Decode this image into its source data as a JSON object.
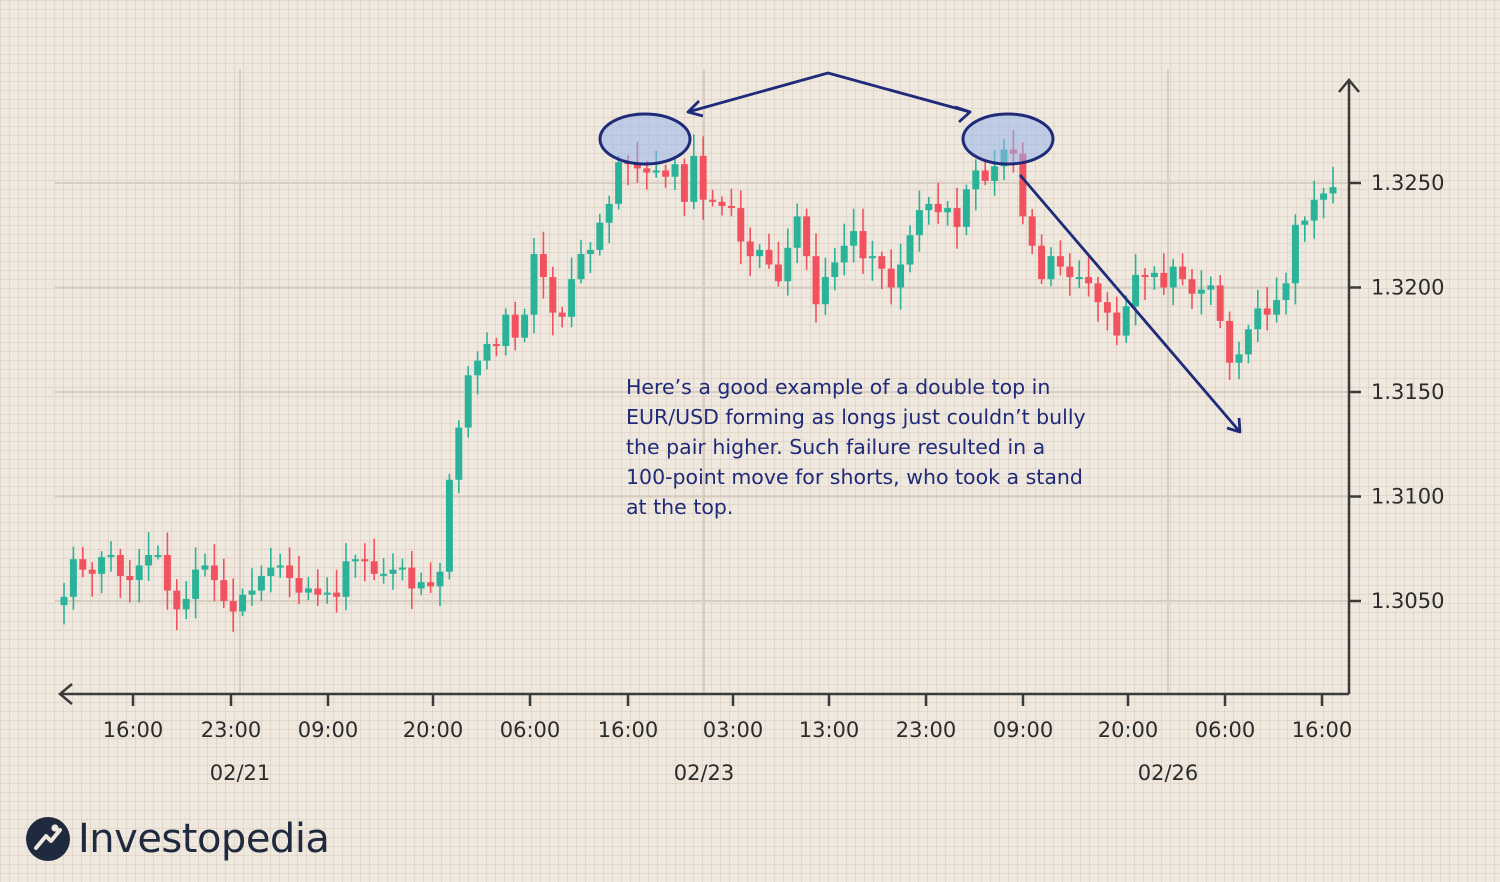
{
  "chart_data": {
    "type": "candlestick",
    "title": "",
    "xlabel": "",
    "ylabel": "",
    "ylim": [
      1.3005,
      1.329
    ],
    "y_ticks": [
      {
        "value": 1.305,
        "label": "1.3050"
      },
      {
        "value": 1.31,
        "label": "1.3100"
      },
      {
        "value": 1.315,
        "label": "1.3150"
      },
      {
        "value": 1.32,
        "label": "1.3200"
      },
      {
        "value": 1.325,
        "label": "1.3250"
      }
    ],
    "x_ticks": [
      "16:00",
      "23:00",
      "09:00",
      "20:00",
      "06:00",
      "16:00",
      "03:00",
      "13:00",
      "23:00",
      "09:00",
      "20:00",
      "06:00",
      "16:00"
    ],
    "date_labels": [
      "02/21",
      "02/23",
      "02/26"
    ],
    "grid": true,
    "up_color": "#2bb39a",
    "down_color": "#f0535f",
    "closes": [
      1.3052,
      1.307,
      1.3065,
      1.3063,
      1.3071,
      1.3072,
      1.3062,
      1.306,
      1.3067,
      1.3072,
      1.3072,
      1.3055,
      1.3046,
      1.3051,
      1.3065,
      1.3067,
      1.306,
      1.305,
      1.3045,
      1.3053,
      1.3055,
      1.3062,
      1.3066,
      1.3067,
      1.3061,
      1.3054,
      1.3056,
      1.3053,
      1.3054,
      1.3052,
      1.3069,
      1.307,
      1.3069,
      1.3063,
      1.3063,
      1.3065,
      1.3066,
      1.3056,
      1.3059,
      1.3057,
      1.3064,
      1.3108,
      1.3133,
      1.3158,
      1.3165,
      1.3173,
      1.3172,
      1.3187,
      1.3176,
      1.3187,
      1.3216,
      1.3205,
      1.3188,
      1.3186,
      1.3204,
      1.3216,
      1.3218,
      1.3231,
      1.324,
      1.326,
      1.3259,
      1.3257,
      1.3255,
      1.3256,
      1.3253,
      1.3259,
      1.3241,
      1.3263,
      1.3242,
      1.3241,
      1.3239,
      1.3238,
      1.3222,
      1.3215,
      1.3218,
      1.3211,
      1.3203,
      1.3219,
      1.3234,
      1.3215,
      1.3192,
      1.3205,
      1.3212,
      1.322,
      1.3227,
      1.3214,
      1.3215,
      1.3209,
      1.32,
      1.3211,
      1.3225,
      1.3237,
      1.324,
      1.3236,
      1.3238,
      1.3229,
      1.3247,
      1.3256,
      1.3251,
      1.3258,
      1.3266,
      1.3264,
      1.3234,
      1.322,
      1.3204,
      1.3215,
      1.321,
      1.3205,
      1.3205,
      1.3202,
      1.3193,
      1.3188,
      1.3177,
      1.3191,
      1.3206,
      1.3205,
      1.3207,
      1.32,
      1.321,
      1.3204,
      1.3197,
      1.3199,
      1.3201,
      1.3184,
      1.3164,
      1.3168,
      1.318,
      1.319,
      1.3187,
      1.3194,
      1.3202,
      1.323,
      1.3232,
      1.3242,
      1.3245,
      1.3248
    ]
  },
  "annotation": "Here’s a good example of a double top in EUR/USD forming as longs just couldn’t bully the pair higher. Such failure resulted in a 100-point move for shorts, who took a stand at the top.",
  "brand": {
    "name": "Investopedia",
    "mark_color": "#1f2a3e"
  },
  "overlay_color": "#1f2a78"
}
